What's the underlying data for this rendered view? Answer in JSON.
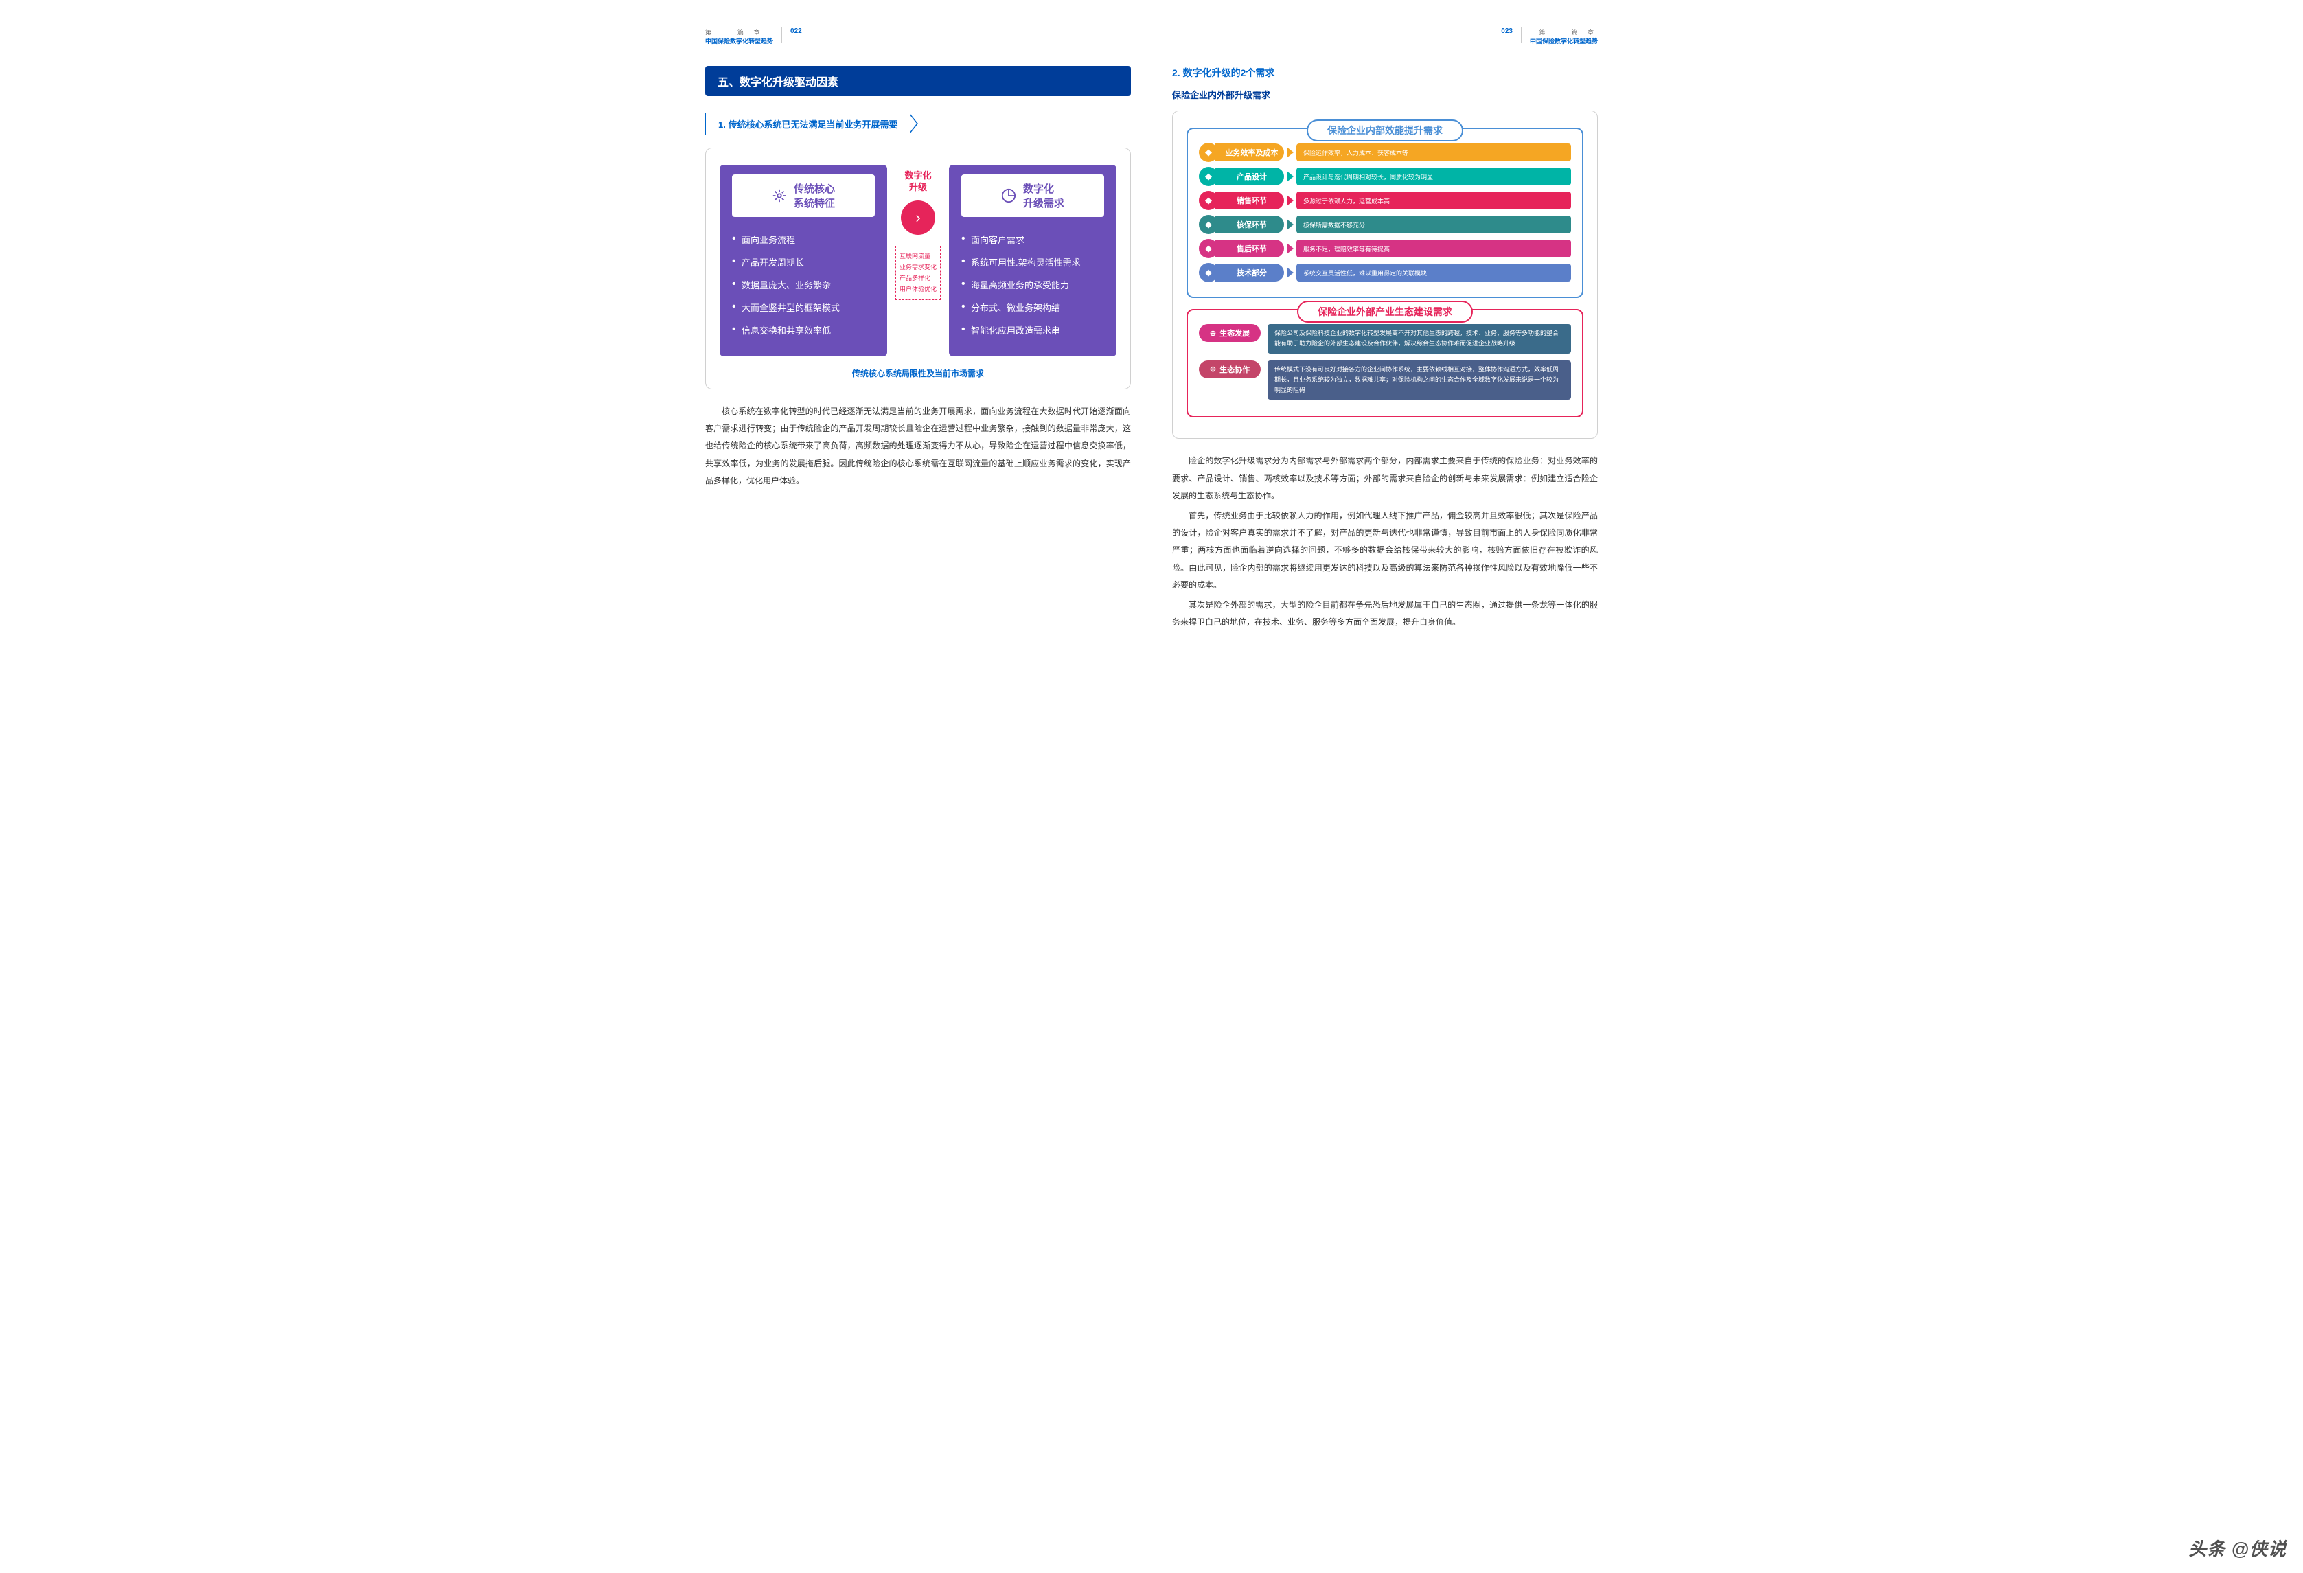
{
  "left": {
    "header": {
      "chapter": "第 一 篇 章",
      "title": "中国保险数字化转型趋势",
      "page": "022"
    },
    "banner": "五、数字化升级驱动因素",
    "sub1": "1. 传统核心系统已无法满足当前业务开展需要",
    "diagram": {
      "leftBox": {
        "title": "传统核心\n系统特征",
        "bg": "#6b4fb8",
        "items": [
          "面向业务流程",
          "产品开发周期长",
          "数据量庞大、业务繁杂",
          "大而全竖井型的框架模式",
          "信息交换和共享效率低"
        ]
      },
      "middle": {
        "label": "数字化\n升级",
        "tags": [
          "互联网流量",
          "业务需求变化",
          "产品多样化",
          "用户体验优化"
        ]
      },
      "rightBox": {
        "title": "数字化\n升级需求",
        "bg": "#6b4fb8",
        "items": [
          "面向客户需求",
          "系统可用性.架构灵活性需求",
          "海量高频业务的承受能力",
          "分布式、微业务架构结",
          "智能化应用改造需求串"
        ]
      },
      "caption": "传统核心系统局限性及当前市场需求"
    },
    "body": "核心系统在数字化转型的时代已经逐渐无法满足当前的业务开展需求，面向业务流程在大数据时代开始逐渐面向客户需求进行转变；由于传统险企的产品开发周期较长且险企在运营过程中业务繁杂，接触到的数据量非常庞大，这也给传统险企的核心系统带来了高负荷，高频数据的处理逐渐变得力不从心，导致险企在运营过程中信息交换率低，共享效率低，为业务的发展拖后腿。因此传统险企的核心系统需在互联网流量的基础上顺应业务需求的变化，实现产品多样化，优化用户体验。"
  },
  "right": {
    "header": {
      "chapter": "第 一 篇 章",
      "title": "中国保险数字化转型趋势",
      "page": "023"
    },
    "sub2": "2. 数字化升级的2个需求",
    "subsub": "保险企业内外部升级需求",
    "panel1": {
      "title": "保险企业内部效能提升需求",
      "border": "#4a8fd6",
      "rows": [
        {
          "label": "业务效率及成本",
          "desc": "保险运作效率，人力成本、获客成本等",
          "color": "#f5a623"
        },
        {
          "label": "产品设计",
          "desc": "产品设计与迭代周期相对较长，同质化较为明显",
          "color": "#00b4a6"
        },
        {
          "label": "销售环节",
          "desc": "多源过于依赖人力，运营成本高",
          "color": "#e6245a"
        },
        {
          "label": "核保环节",
          "desc": "核保所需数据不够充分",
          "color": "#2e8b8b"
        },
        {
          "label": "售后环节",
          "desc": "服务不足，理赔效率等有待提高",
          "color": "#d63384"
        },
        {
          "label": "技术部分",
          "desc": "系统交互灵活性低，难以重用得定的关联模块",
          "color": "#5b7fc9"
        }
      ]
    },
    "panel2": {
      "title": "保险企业外部产业生态建设需求",
      "border": "#e6245a",
      "rows": [
        {
          "label": "生态发展",
          "desc": "保险公司及保险科技企业的数字化转型发展离不开对其他生态的跨越，技术、业务、服务等多功能的整合能有助于助力险企的外部生态建设及合作伙伴，解决综合生态协作难而促进企业战略升级",
          "color": "#d63384",
          "descBg": "#3a6b8a"
        },
        {
          "label": "生态协作",
          "desc": "传统模式下没有可良好对接各方的企业间协作系统，主要依赖线相互对接，整体协作沟通方式，效率低周期长，且业务系统较为独立，数据难共享；对保险机构之间的生态合作及全域数字化发展来说是一个较为明显的阻碍",
          "color": "#c44569",
          "descBg": "#4a5f8a"
        }
      ]
    },
    "body": [
      "险企的数字化升级需求分为内部需求与外部需求两个部分，内部需求主要来自于传统的保险业务：对业务效率的要求、产品设计、销售、两核效率以及技术等方面；外部的需求来自险企的创新与未来发展需求：例如建立适合险企发展的生态系统与生态协作。",
      "首先，传统业务由于比较依赖人力的作用，例如代理人线下推广产品，佣金较高并且效率很低；其次是保险产品的设计，险企对客户真实的需求并不了解，对产品的更新与迭代也非常谨慎，导致目前市面上的人身保险同质化非常严重；两核方面也面临着逆向选择的问题，不够多的数据会给核保带来较大的影响，核赔方面依旧存在被欺诈的风险。由此可见，险企内部的需求将继续用更发达的科技以及高级的算法来防范各种操作性风险以及有效地降低一些不必要的成本。",
      "其次是险企外部的需求，大型的险企目前都在争先恐后地发展属于自己的生态圈，通过提供一条龙等一体化的服务来捍卫自己的地位，在技术、业务、服务等多方面全面发展，提升自身价值。"
    ]
  },
  "watermark": "头条 @侠说"
}
